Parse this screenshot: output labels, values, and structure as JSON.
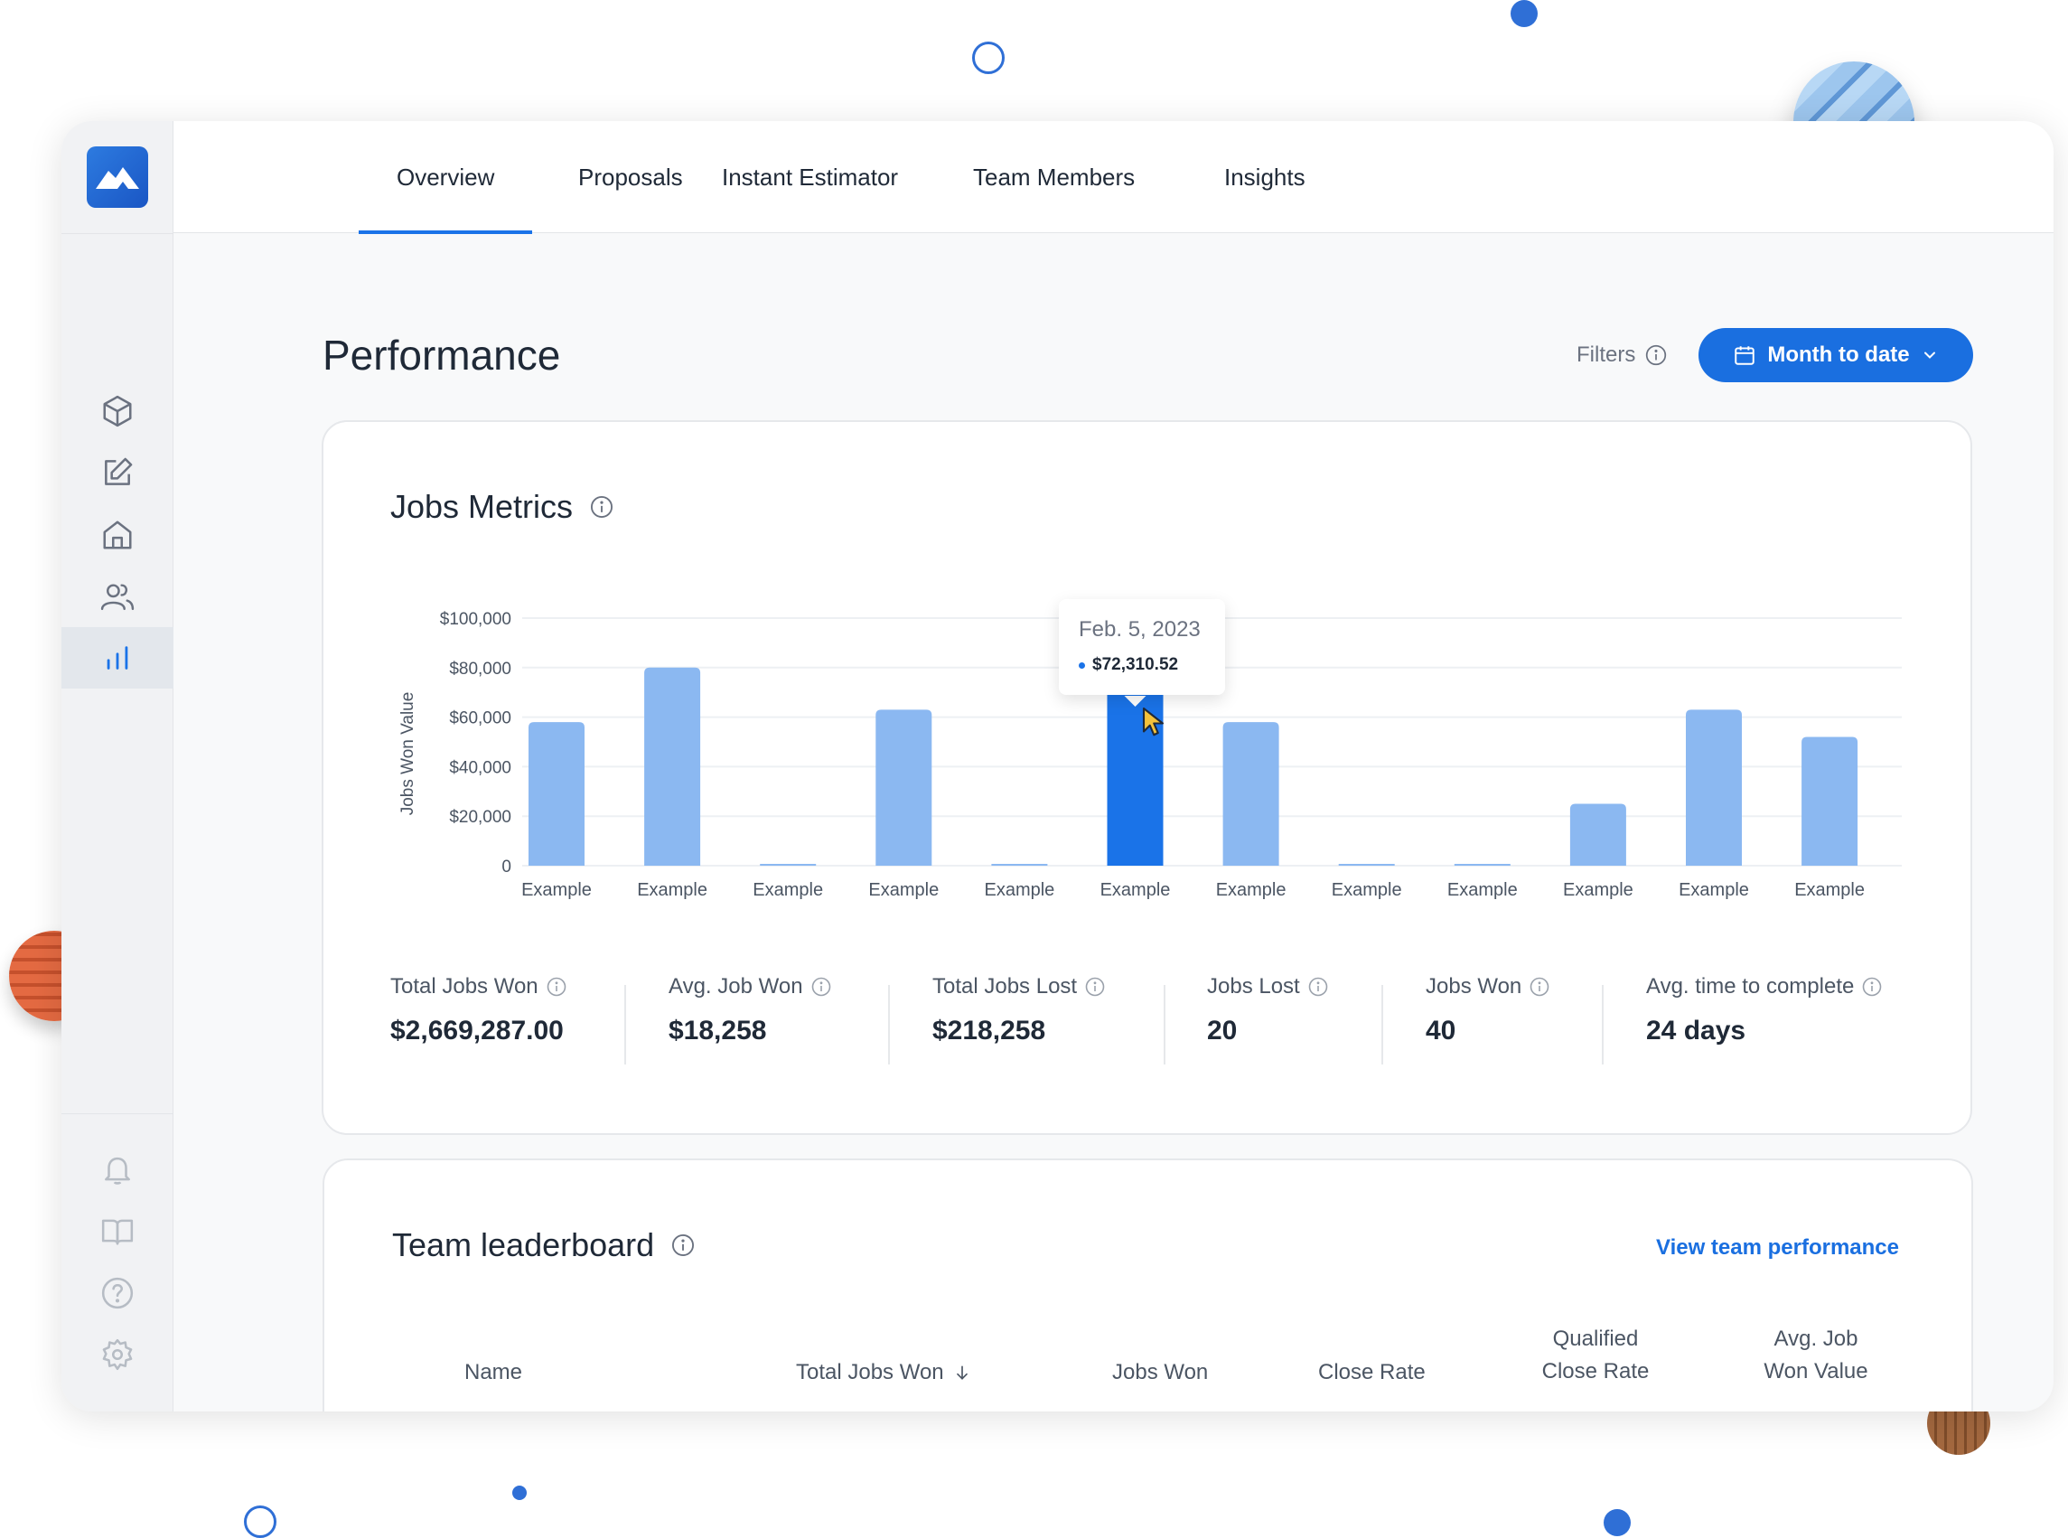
{
  "nav": {
    "tabs": [
      {
        "label": "Overview",
        "active": true
      },
      {
        "label": "Proposals",
        "active": false
      },
      {
        "label": "Instant Estimator",
        "active": false
      },
      {
        "label": "Team Members",
        "active": false
      },
      {
        "label": "Insights",
        "active": false
      }
    ]
  },
  "sidebar": {
    "top_items": [
      {
        "icon": "cube-icon"
      },
      {
        "icon": "edit-icon"
      },
      {
        "icon": "home-icon"
      },
      {
        "icon": "users-icon"
      },
      {
        "icon": "bar-chart-icon",
        "active": true
      }
    ],
    "bottom_items": [
      {
        "icon": "bell-icon"
      },
      {
        "icon": "book-icon"
      },
      {
        "icon": "help-icon"
      },
      {
        "icon": "gear-icon"
      }
    ]
  },
  "header": {
    "title": "Performance",
    "filters_label": "Filters",
    "date_range_label": "Month to date"
  },
  "jobs_metrics": {
    "title": "Jobs Metrics",
    "tooltip": {
      "date": "Feb. 5, 2023",
      "value": "$72,310.52"
    },
    "metrics": [
      {
        "label": "Total Jobs Won",
        "value": "$2,669,287.00"
      },
      {
        "label": "Avg. Job Won",
        "value": "$18,258"
      },
      {
        "label": "Total Jobs Lost",
        "value": "$218,258"
      },
      {
        "label": "Jobs Lost",
        "value": "20"
      },
      {
        "label": "Jobs Won",
        "value": "40"
      },
      {
        "label": "Avg. time to complete",
        "value": "24 days"
      }
    ]
  },
  "chart_data": {
    "type": "bar",
    "ylabel": "Jobs Won Value",
    "xlabel": "",
    "ylim": [
      0,
      100000
    ],
    "y_ticks": [
      "$100,000",
      "$80,000",
      "$60,000",
      "$40,000",
      "$20,000",
      "0"
    ],
    "y_tick_values": [
      100000,
      80000,
      60000,
      40000,
      20000,
      0
    ],
    "categories": [
      "Example",
      "Example",
      "Example",
      "Example",
      "Example",
      "Example",
      "Example",
      "Example",
      "Example",
      "Example",
      "Example",
      "Example"
    ],
    "values": [
      58000,
      80000,
      0,
      63000,
      0,
      72310.52,
      58000,
      0,
      0,
      25000,
      63000,
      52000
    ],
    "highlight_index": 5,
    "grid": true,
    "colors": {
      "bar": "#8bb8f1",
      "highlight": "#1a73e8",
      "grid": "#edf0f3"
    }
  },
  "leaderboard": {
    "title": "Team leaderboard",
    "link_label": "View team performance",
    "columns": [
      "Name",
      "Total Jobs Won",
      "Jobs Won",
      "Close Rate",
      "Qualified Close Rate",
      "Avg. Job Won Value"
    ]
  },
  "colors": {
    "accent": "#1a6fe0",
    "background": "#f8f9fa"
  }
}
